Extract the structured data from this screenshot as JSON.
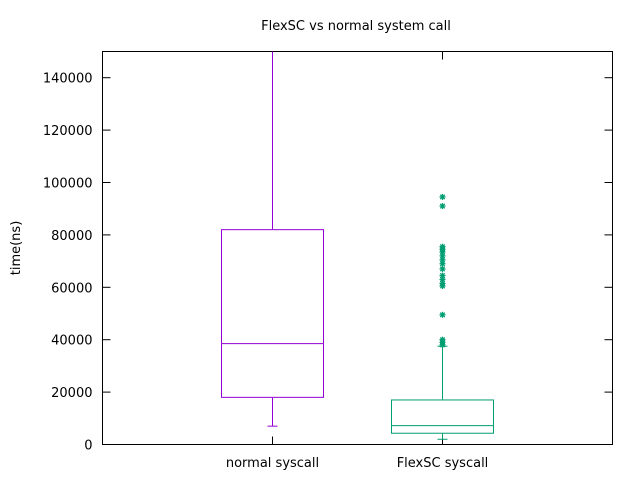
{
  "chart_data": {
    "type": "box",
    "title": "FlexSC vs normal system call",
    "xlabel": "",
    "ylabel": "time(ns)",
    "ylim": [
      0,
      150000
    ],
    "yticks": [
      0,
      20000,
      40000,
      60000,
      80000,
      100000,
      120000,
      140000
    ],
    "grid": false,
    "categories": [
      "normal syscall",
      "FlexSC syscall"
    ],
    "series": [
      {
        "category": "normal syscall",
        "color": "#9400d3",
        "whisker_low": 7000,
        "q1": 18000,
        "median": 38500,
        "q3": 82000,
        "whisker_high": 150000,
        "outliers": []
      },
      {
        "category": "FlexSC syscall",
        "color": "#009e73",
        "whisker_low": 2000,
        "q1": 4300,
        "median": 7200,
        "q3": 17000,
        "whisker_high": 37500,
        "outliers": [
          38000,
          39000,
          40000,
          49500,
          60500,
          61500,
          63000,
          64500,
          67000,
          69000,
          70500,
          72000,
          73500,
          74500,
          75500,
          91000,
          94500
        ]
      }
    ]
  }
}
